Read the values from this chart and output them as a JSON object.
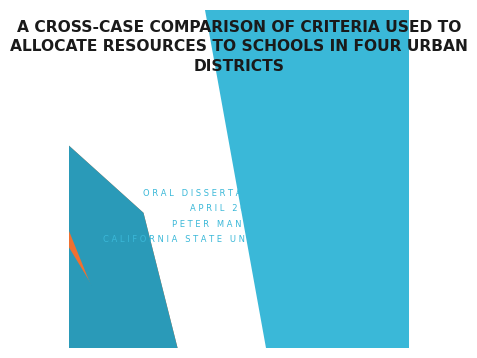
{
  "title_line1": "A CROSS-CASE COMPARISON OF CRITERIA USED TO",
  "title_line2": "ALLOCATE RESOURCES TO SCHOOLS IN FOUR URBAN",
  "title_line3": "DISTRICTS",
  "sub_line1": "ORAL DISSERTATION DEFENSE",
  "sub_line2": "APRIL 26, 2011",
  "sub_line3": "PETER MANGLA ALOO",
  "sub_line4": "CALIFORNIA STATE UNIVERSITY, EAST BAY",
  "bg_color": "#ffffff",
  "title_color": "#1a1a1a",
  "subtitle_color": "#3ab8d8",
  "cyan_color": "#3ab8d8",
  "orange_color": "#f07030",
  "dark_cyan_color": "#2a9ab8"
}
